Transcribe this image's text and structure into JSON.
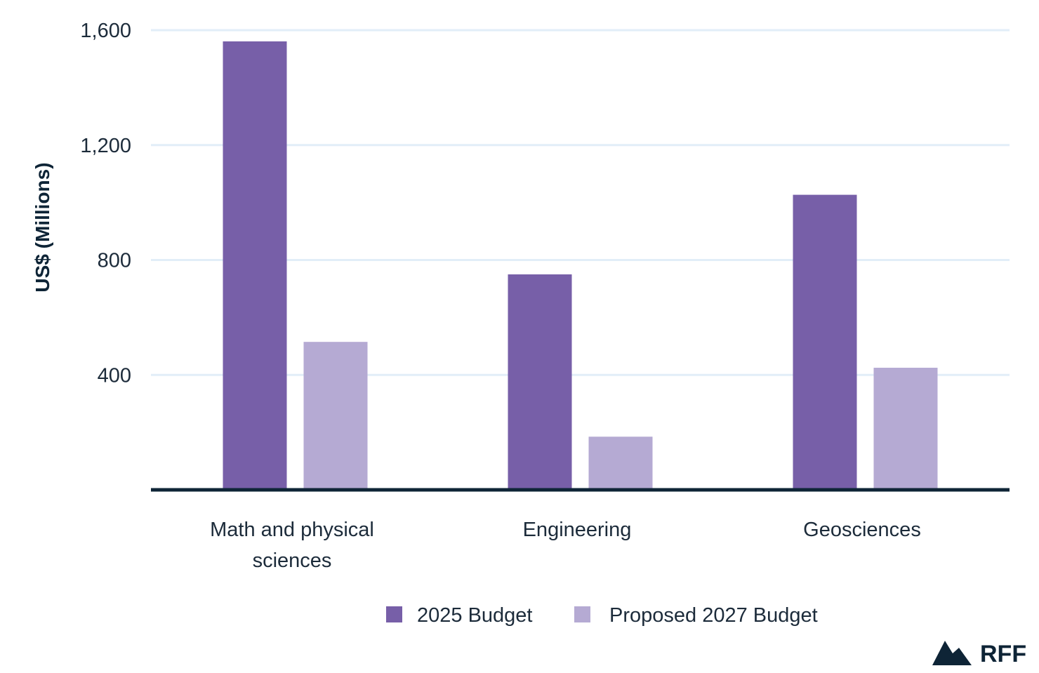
{
  "chart_data": {
    "type": "bar",
    "title": "",
    "xlabel": "",
    "ylabel": "US$ (Millions)",
    "categories": [
      [
        "Math and physical",
        "sciences"
      ],
      [
        "Engineering"
      ],
      [
        "Geosciences"
      ]
    ],
    "series": [
      {
        "name": "2025 Budget",
        "color": "#775fa8",
        "values": [
          1561,
          750,
          1027
        ]
      },
      {
        "name": "Proposed 2027 Budget",
        "color": "#b5aad3",
        "values": [
          515,
          185,
          425
        ]
      }
    ],
    "ylim": [
      0,
      1600
    ],
    "yticks": [
      400,
      800,
      1200,
      1600
    ],
    "ytick_labels": [
      "400",
      "800",
      "1,200",
      "1,600"
    ],
    "grid": true,
    "gridline_color": "#e2eef8",
    "axis_color": "#0e2436",
    "legend_position": "bottom-center"
  },
  "logo": {
    "text": "RFF",
    "icon": "mountain-logo-icon",
    "color": "#0e2436"
  }
}
